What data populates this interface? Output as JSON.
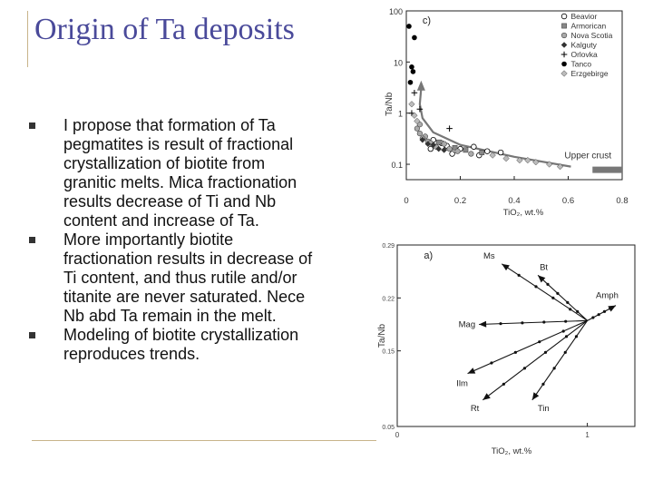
{
  "slide": {
    "title": "Origin of Ta deposits",
    "bullets": [
      "I propose that formation of Ta pegmatites is result of fractional crystallization of biotite from granitic melts. Mica fractionation results decrease of Ti and Nb content and increase of Ta.",
      "More importantly biotite fractionation results in decrease of Ti content, and thus rutile and/or titanite are never saturated. Nece Nb abd Ta remain in the melt.",
      "Modeling of biotite crystallization reproduces trends."
    ]
  },
  "chart_data": [
    {
      "type": "scatter",
      "panel_label": "c)",
      "xlabel": "TiO₂, wt.%",
      "ylabel": "Ta/Nb",
      "y_scale": "log",
      "xlim": [
        0,
        0.8
      ],
      "ylim": [
        0.05,
        100
      ],
      "x_ticks": [
        "0",
        "0.2",
        "0.4",
        "0.6",
        "0.8"
      ],
      "y_ticks": [
        "100",
        "10",
        "1",
        "0.1"
      ],
      "legend": [
        {
          "name": "Beavior",
          "marker": "open-circle"
        },
        {
          "name": "Armorican",
          "marker": "gray-square"
        },
        {
          "name": "Nova Scotia",
          "marker": "gray-circle"
        },
        {
          "name": "Kalguty",
          "marker": "dark-diamond"
        },
        {
          "name": "Orlovka",
          "marker": "plus"
        },
        {
          "name": "Tanco",
          "marker": "black-circle"
        },
        {
          "name": "Erzgebirge",
          "marker": "gray-diamond"
        }
      ],
      "annotation": "Upper crust",
      "upper_crust_band": {
        "x": [
          0.69,
          0.8
        ],
        "y": 0.078
      },
      "trend_arrow": [
        [
          0.61,
          0.09
        ],
        [
          0.4,
          0.14
        ],
        [
          0.2,
          0.24
        ],
        [
          0.1,
          0.42
        ],
        [
          0.06,
          0.8
        ],
        [
          0.05,
          1.5
        ],
        [
          0.055,
          3.0
        ]
      ],
      "series": [
        {
          "marker": "black-circle",
          "points": [
            [
              0.01,
              50
            ],
            [
              0.03,
              30
            ],
            [
              0.02,
              8
            ],
            [
              0.025,
              6.5
            ],
            [
              0.015,
              4
            ]
          ]
        },
        {
          "marker": "open-circle",
          "points": [
            [
              0.1,
              0.3
            ],
            [
              0.2,
              0.2
            ],
            [
              0.25,
              0.22
            ],
            [
              0.3,
              0.18
            ],
            [
              0.35,
              0.17
            ],
            [
              0.13,
              0.26
            ],
            [
              0.17,
              0.16
            ],
            [
              0.09,
              0.2
            ],
            [
              0.27,
              0.15
            ],
            [
              0.15,
              0.23
            ]
          ]
        },
        {
          "marker": "gray-square",
          "points": [
            [
              0.12,
              0.27
            ],
            [
              0.18,
              0.21
            ],
            [
              0.22,
              0.19
            ],
            [
              0.28,
              0.17
            ]
          ]
        },
        {
          "marker": "gray-circle",
          "points": [
            [
              0.04,
              0.5
            ],
            [
              0.05,
              0.4
            ],
            [
              0.07,
              0.35
            ],
            [
              0.08,
              0.28
            ],
            [
              0.11,
              0.22
            ],
            [
              0.14,
              0.25
            ],
            [
              0.16,
              0.2
            ],
            [
              0.19,
              0.18
            ],
            [
              0.24,
              0.16
            ],
            [
              0.05,
              0.6
            ],
            [
              0.06,
              0.32
            ],
            [
              0.09,
              0.26
            ]
          ]
        },
        {
          "marker": "dark-diamond",
          "points": [
            [
              0.06,
              0.3
            ],
            [
              0.08,
              0.25
            ],
            [
              0.1,
              0.24
            ],
            [
              0.12,
              0.2
            ],
            [
              0.14,
              0.19
            ]
          ]
        },
        {
          "marker": "plus",
          "points": [
            [
              0.03,
              2.5
            ],
            [
              0.05,
              1.2
            ],
            [
              0.16,
              0.5
            ],
            [
              0.02,
              1.0
            ]
          ]
        },
        {
          "marker": "gray-diamond",
          "points": [
            [
              0.02,
              1.5
            ],
            [
              0.03,
              0.9
            ],
            [
              0.04,
              0.7
            ],
            [
              0.32,
              0.15
            ],
            [
              0.37,
              0.13
            ],
            [
              0.42,
              0.12
            ],
            [
              0.48,
              0.11
            ],
            [
              0.57,
              0.09
            ],
            [
              0.53,
              0.1
            ],
            [
              0.45,
              0.12
            ]
          ]
        }
      ]
    },
    {
      "type": "line",
      "panel_label": "a)",
      "xlabel": "TiO₂, wt.%",
      "ylabel": "Ta/Nb",
      "xlim": [
        0,
        1.25
      ],
      "ylim": [
        0.05,
        0.29
      ],
      "x_ticks": [
        "0",
        "1"
      ],
      "y_ticks": [
        "0.29",
        "0.22",
        "0.15",
        "0.05"
      ],
      "origin": [
        1.0,
        0.19
      ],
      "vectors": [
        {
          "name": "Ms",
          "end": [
            0.55,
            0.265
          ]
        },
        {
          "name": "Bt",
          "end": [
            0.74,
            0.25
          ]
        },
        {
          "name": "Amph",
          "end": [
            1.15,
            0.21
          ]
        },
        {
          "name": "Mag",
          "end": [
            0.43,
            0.185
          ]
        },
        {
          "name": "Ilm",
          "end": [
            0.37,
            0.12
          ]
        },
        {
          "name": "Rt",
          "end": [
            0.45,
            0.085
          ]
        },
        {
          "name": "Tin",
          "end": [
            0.71,
            0.085
          ]
        }
      ]
    }
  ]
}
